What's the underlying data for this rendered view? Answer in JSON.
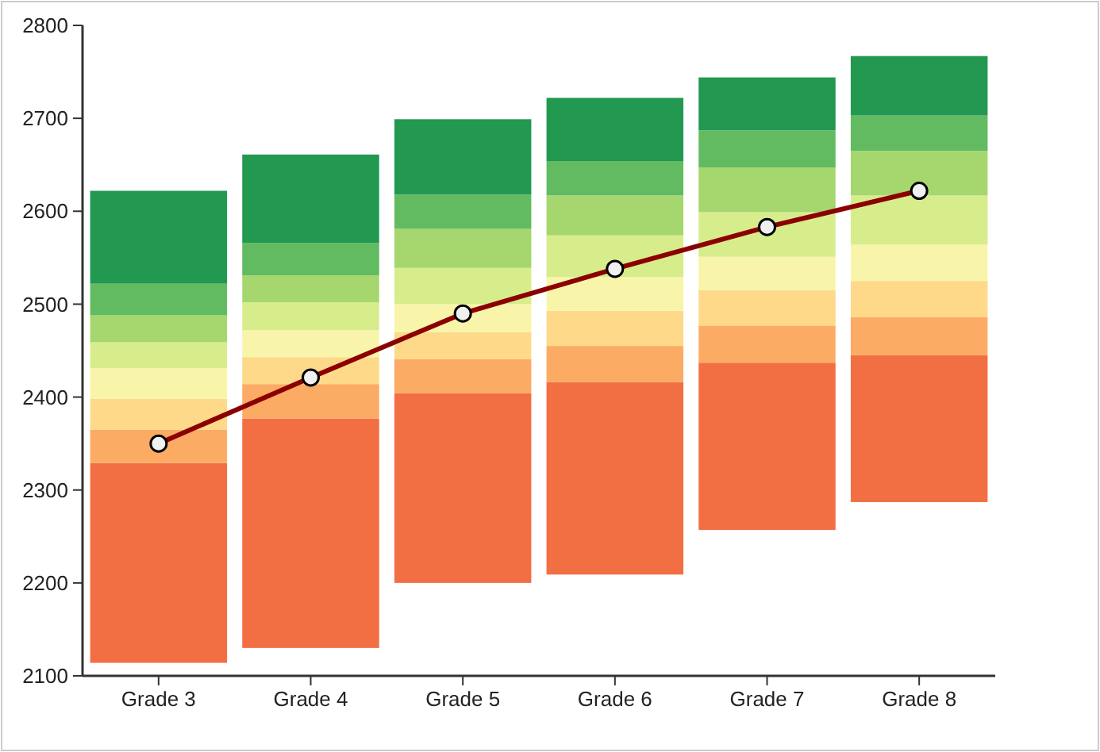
{
  "chart_data": {
    "type": "bar",
    "categories": [
      "Grade 3",
      "Grade 4",
      "Grade 5",
      "Grade 6",
      "Grade 7",
      "Grade 8"
    ],
    "ylim": [
      2100,
      2800
    ],
    "yticks": [
      2100,
      2200,
      2300,
      2400,
      2500,
      2600,
      2700,
      2800
    ],
    "series": [
      {
        "color": "#f26f44",
        "base": [
          2114,
          2130,
          2200,
          2209,
          2257,
          2287
        ],
        "values": [
          215,
          247,
          204,
          207,
          180,
          158
        ]
      },
      {
        "color": "#fcab64",
        "base": [
          2329,
          2377,
          2404,
          2416,
          2437,
          2445
        ],
        "values": [
          36,
          37,
          37,
          39,
          40,
          41
        ]
      },
      {
        "color": "#fed98a",
        "base": [
          2365,
          2414,
          2441,
          2455,
          2477,
          2486
        ],
        "values": [
          33,
          29,
          29,
          38,
          38,
          39
        ]
      },
      {
        "color": "#f8f5aa",
        "base": [
          2398,
          2443,
          2470,
          2493,
          2515,
          2525
        ],
        "values": [
          33,
          29,
          30,
          36,
          36,
          39
        ]
      },
      {
        "color": "#d7ed8c",
        "base": [
          2431,
          2472,
          2500,
          2529,
          2551,
          2564
        ],
        "values": [
          28,
          30,
          39,
          45,
          48,
          53
        ]
      },
      {
        "color": "#a5d76e",
        "base": [
          2459,
          2502,
          2539,
          2574,
          2599,
          2617
        ],
        "values": [
          29,
          29,
          42,
          43,
          48,
          48
        ]
      },
      {
        "color": "#62bb60",
        "base": [
          2488,
          2531,
          2581,
          2617,
          2647,
          2665
        ],
        "values": [
          34,
          35,
          37,
          37,
          40,
          38
        ]
      },
      {
        "color": "#229850",
        "base": [
          2522,
          2566,
          2618,
          2654,
          2687,
          2703
        ],
        "values": [
          100,
          95,
          81,
          68,
          57,
          64
        ]
      },
      {
        "type": "line",
        "color": "#8b0000",
        "marker": "circle",
        "line_style": "solid",
        "values": [
          2350,
          2421,
          2490,
          2538,
          2583,
          2622
        ]
      }
    ]
  }
}
